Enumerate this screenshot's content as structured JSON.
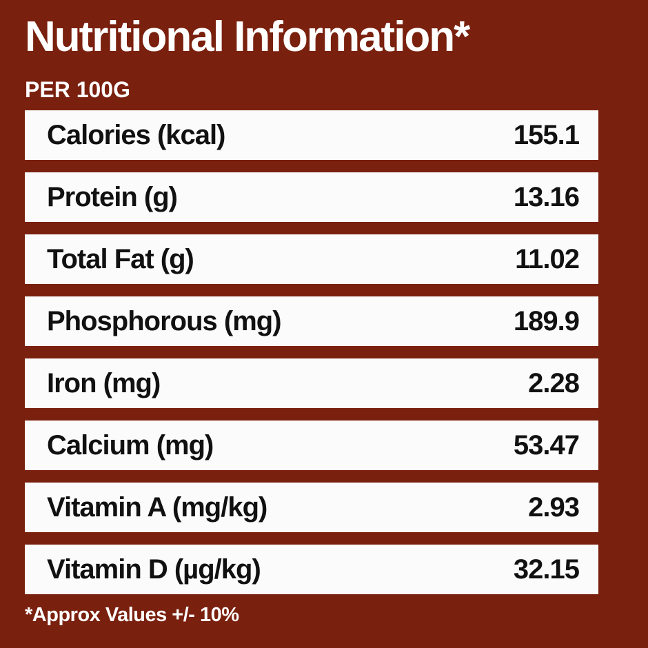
{
  "header": {
    "title": "Nutritional Information*",
    "subtitle": "PER 100G"
  },
  "table": {
    "rows": [
      [
        "Calories (kcal)",
        "155.1"
      ],
      [
        "Protein (g)",
        "13.16"
      ],
      [
        "Total Fat (g)",
        "11.02"
      ],
      [
        "Phosphorous (mg)",
        "189.9"
      ],
      [
        "Iron (mg)",
        "2.28"
      ],
      [
        "Calcium (mg)",
        "53.47"
      ],
      [
        "Vitamin A (mg/kg)",
        "2.93"
      ],
      [
        "Vitamin D (µg/kg)",
        "32.15"
      ]
    ]
  },
  "footnote": "*Approx Values +/- 10%"
}
